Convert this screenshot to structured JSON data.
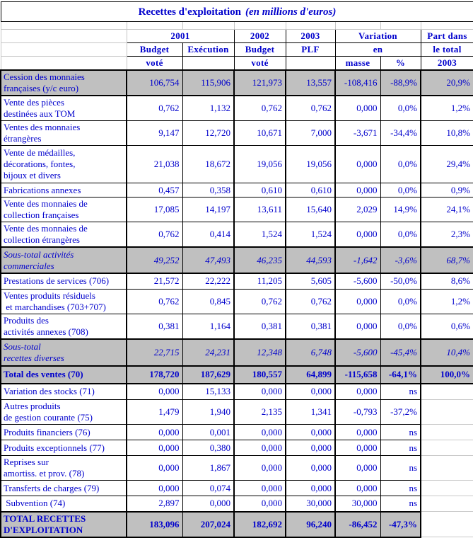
{
  "colors": {
    "text_blue": "#0000cc",
    "band_gray": "#c0c0c0",
    "border_black": "#000000"
  },
  "title": {
    "text": "Recettes d'exploitation",
    "unit": "(en millions d'euros)"
  },
  "header": {
    "r1": {
      "y2001": "2001",
      "y2002": "2002",
      "y2003": "2003",
      "variation": "Variation",
      "part": "Part dans"
    },
    "r2": {
      "budget1": "Budget",
      "execution": "Exécution",
      "budget2": "Budget",
      "plf": "PLF",
      "en": "en",
      "part": "le total"
    },
    "r3": {
      "vote1": "voté",
      "vote2": "voté",
      "masse": "masse",
      "pct": "%",
      "part": "2003"
    }
  },
  "rows": [
    {
      "label": "Cession des monnaies\nfrançaises (y/c euro)",
      "style": "band",
      "values": [
        "106,754",
        "115,906",
        "121,973",
        "13,557",
        "-108,416",
        "-88,9%",
        "20,9%"
      ]
    },
    {
      "label": "Vente des pièces\ndestinées aux TOM",
      "style": "plain",
      "values": [
        "0,762",
        "1,132",
        "0,762",
        "0,762",
        "0,000",
        "0,0%",
        "1,2%"
      ]
    },
    {
      "label": "Ventes des monnaies\nétrangères",
      "style": "plain",
      "values": [
        "9,147",
        "12,720",
        "10,671",
        "7,000",
        "-3,671",
        "-34,4%",
        "10,8%"
      ]
    },
    {
      "label": "Vente de médailles,\ndécorations, fontes,\nbijoux et divers",
      "style": "plain",
      "values": [
        "21,038",
        "18,672",
        "19,056",
        "19,056",
        "0,000",
        "0,0%",
        "29,4%"
      ]
    },
    {
      "label": "Fabrications annexes",
      "style": "plain",
      "values": [
        "0,457",
        "0,358",
        "0,610",
        "0,610",
        "0,000",
        "0,0%",
        "0,9%"
      ]
    },
    {
      "label": "Vente des monnaies de\ncollection françaises",
      "style": "plain",
      "values": [
        "17,085",
        "14,197",
        "13,611",
        "15,640",
        "2,029",
        "14,9%",
        "24,1%"
      ]
    },
    {
      "label": "Vente des monnaies de\ncollection étrangères",
      "style": "plain",
      "values": [
        "0,762",
        "0,414",
        "1,524",
        "1,524",
        "0,000",
        "0,0%",
        "2,3%"
      ]
    },
    {
      "label": "Sous-total activités\ncommerciales",
      "style": "subtotal",
      "values": [
        "49,252",
        "47,493",
        "46,235",
        "44,593",
        "-1,642",
        "-3,6%",
        "68,7%"
      ]
    },
    {
      "label": "Prestations de services (706)",
      "style": "plain",
      "values": [
        "21,572",
        "22,222",
        "11,205",
        "5,605",
        "-5,600",
        "-50,0%",
        "8,6%"
      ]
    },
    {
      "label": "Ventes produits résiduels\n et marchandises (703+707)",
      "style": "plain",
      "values": [
        "0,762",
        "0,845",
        "0,762",
        "0,762",
        "0,000",
        "0,0%",
        "1,2%"
      ]
    },
    {
      "label": "Produits des\nactivités annexes (708)",
      "style": "plain",
      "values": [
        "0,381",
        "1,164",
        "0,381",
        "0,381",
        "0,000",
        "0,0%",
        "0,6%"
      ]
    },
    {
      "label": "Sous-total\nrecettes diverses",
      "style": "subtotal",
      "values": [
        "22,715",
        "24,231",
        "12,348",
        "6,748",
        "-5,600",
        "-45,4%",
        "10,4%"
      ]
    },
    {
      "label": "Total des ventes (70)",
      "style": "total",
      "values": [
        "178,720",
        "187,629",
        "180,557",
        "64,899",
        "-115,658",
        "-64,1%",
        "100,0%"
      ]
    },
    {
      "label": "Variation des stocks (71)",
      "style": "plain",
      "values": [
        "0,000",
        "15,133",
        "0,000",
        "0,000",
        "0,000",
        "ns",
        ""
      ]
    },
    {
      "label": "Autres produits\nde gestion courante (75)",
      "style": "plain",
      "values": [
        "1,479",
        "1,940",
        "2,135",
        "1,341",
        "-0,793",
        "-37,2%",
        ""
      ]
    },
    {
      "label": "Produits financiers (76)",
      "style": "plain",
      "values": [
        "0,000",
        "0,001",
        "0,000",
        "0,000",
        "0,000",
        "ns",
        ""
      ]
    },
    {
      "label": "Produits exceptionnels (77)",
      "style": "plain",
      "values": [
        "0,000",
        "0,380",
        "0,000",
        "0,000",
        "0,000",
        "ns",
        ""
      ]
    },
    {
      "label": "Reprises sur\namortiss. et prov. (78)",
      "style": "plain",
      "values": [
        "0,000",
        "1,867",
        "0,000",
        "0,000",
        "0,000",
        "ns",
        ""
      ]
    },
    {
      "label": "Transferts de charges (79)",
      "style": "plain",
      "values": [
        "0,000",
        "0,074",
        "0,000",
        "0,000",
        "0,000",
        "ns",
        ""
      ]
    },
    {
      "label": " Subvention (74)",
      "style": "plain",
      "values": [
        "2,897",
        "0,000",
        "0,000",
        "30,000",
        "30,000",
        "ns",
        ""
      ]
    },
    {
      "label": "TOTAL RECETTES\nD'EXPLOITATION",
      "style": "grand",
      "values": [
        "183,096",
        "207,024",
        "182,692",
        "96,240",
        "-86,452",
        "-47,3%",
        ""
      ]
    }
  ]
}
